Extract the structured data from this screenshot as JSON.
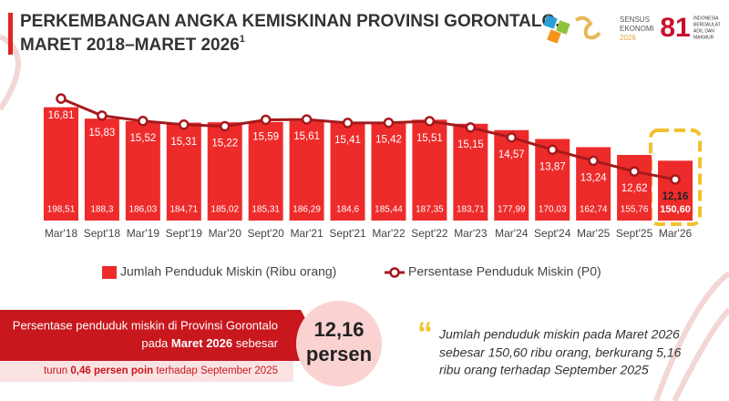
{
  "header": {
    "title_line1": "PERKEMBANGAN ANGKA KEMISKINAN PROVINSI GORONTALO,",
    "title_line2": "MARET 2018–MARET 2026",
    "title_footnote": "1",
    "logo_sensus": [
      "SENSUS",
      "EKONOMI",
      "2026"
    ],
    "logo_81": "81",
    "logo_81_text": [
      "INDONESIA",
      "BERDAULAT",
      "ADIL DAN",
      "MAKMUR"
    ]
  },
  "chart_data": {
    "type": "bar_line",
    "categories": [
      "Mar'18",
      "Sept'18",
      "Mar'19",
      "Sept'19",
      "Mar'20",
      "Sept'20",
      "Mar'21",
      "Sept'21",
      "Mar'22",
      "Sept'22",
      "Mar'23",
      "Mar'24",
      "Sept'24",
      "Mar'25",
      "Sept'25",
      "Mar'26"
    ],
    "series": [
      {
        "name": "Jumlah Penduduk Miskin (Ribu orang)",
        "color": "#ee2b2b",
        "type": "bar",
        "values": [
          198.51,
          188.3,
          186.03,
          184.71,
          185.02,
          185.31,
          186.29,
          184.6,
          185.44,
          187.35,
          183.71,
          177.99,
          170.03,
          162.74,
          155.76,
          150.6
        ],
        "value_labels": [
          "198,51",
          "188,3",
          "186,03",
          "184,71",
          "185,02",
          "185,31",
          "186,29",
          "184,6",
          "185,44",
          "187,35",
          "183,71",
          "177,99",
          "170,03",
          "162,74",
          "155,76",
          "150,60"
        ]
      },
      {
        "name": "Persentase Penduduk Miskin (P0)",
        "color": "#a5191c",
        "type": "line",
        "axis": "y2",
        "values": [
          16.81,
          15.83,
          15.52,
          15.31,
          15.22,
          15.59,
          15.61,
          15.41,
          15.42,
          15.51,
          15.15,
          14.57,
          13.87,
          13.24,
          12.62,
          12.16
        ],
        "value_labels": [
          "16,81",
          "15,83",
          "15,52",
          "15,31",
          "15,22",
          "15,59",
          "15,61",
          "15,41",
          "15,42",
          "15,51",
          "15,15",
          "14,57",
          "13,87",
          "13,24",
          "12,62",
          "12,16"
        ]
      }
    ],
    "ylim": [
      97,
      217
    ],
    "y2lim": [
      9.8,
      17.5
    ],
    "grid": false,
    "highlight_color": "#f2c12e"
  },
  "summary": {
    "line1": "Persentase penduduk miskin di Provinsi Gorontalo",
    "line2_pre": "pada ",
    "line2_bold": "Maret 2026",
    "line2_post": " sebesar",
    "value": "12,16",
    "unit": "persen",
    "note_pre": "turun ",
    "note_bold": "0,46 persen poin",
    "note_post": " terhadap September 2025"
  },
  "quote": [
    "Jumlah penduduk miskin pada Maret 2026",
    "sebesar 150,60 ribu orang, berkurang 5,16",
    "ribu orang terhadap September 2025"
  ]
}
